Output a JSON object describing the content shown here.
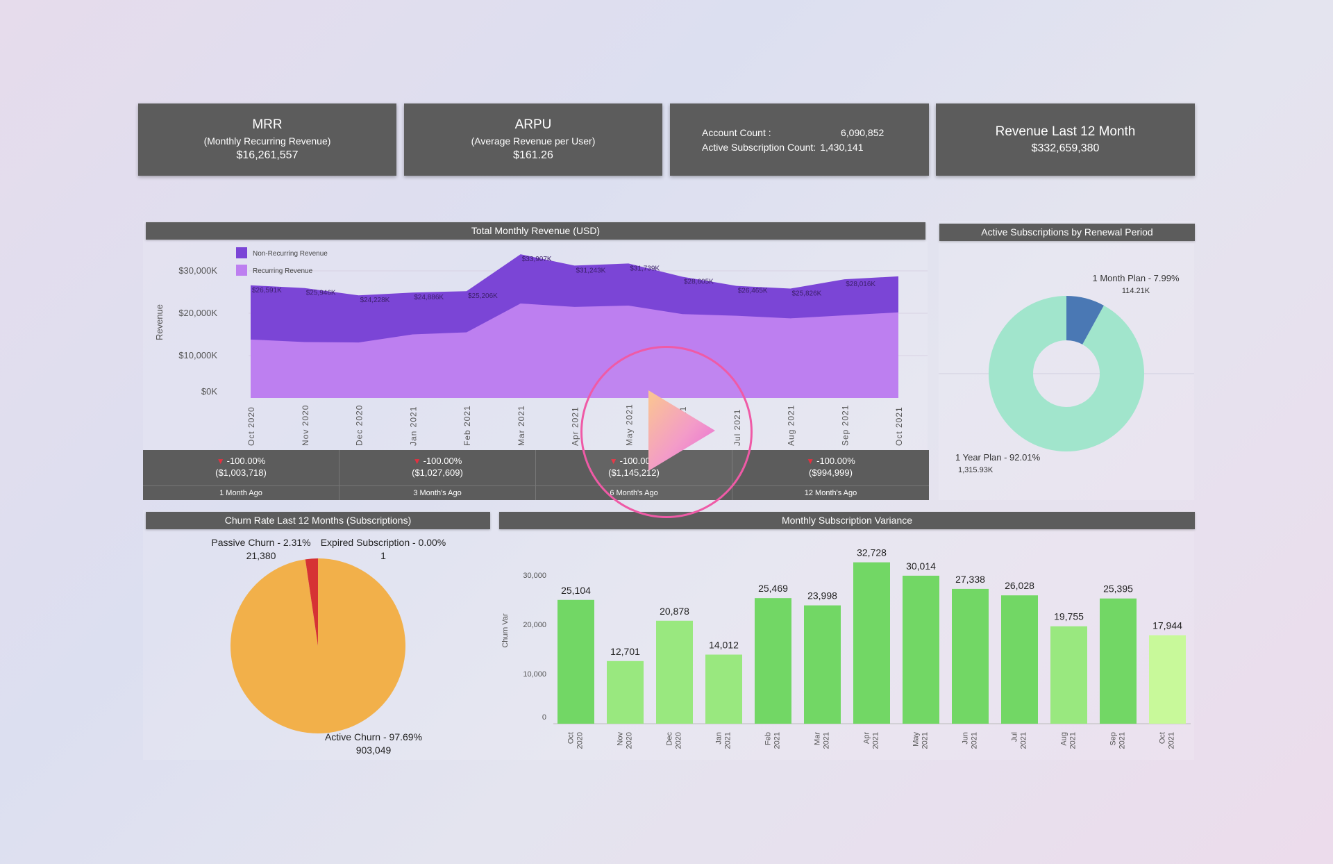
{
  "kpis": {
    "mrr": {
      "title": "MRR",
      "subtitle": "(Monthly Recurring Revenue)",
      "value": "$16,261,557"
    },
    "arpu": {
      "title": "ARPU",
      "subtitle": "(Average Revenue per User)",
      "value": "$161.26"
    },
    "accounts": {
      "account_label": "Account Count :",
      "account_value": "6,090,852",
      "active_label": "Active Subscription Count:",
      "active_value": "1,430,141"
    },
    "revenue12": {
      "title": "Revenue Last 12 Month",
      "value": "$332,659,380"
    }
  },
  "revenue_chart": {
    "title": "Total Monthly Revenue (USD)",
    "legend": {
      "non_recurring": "Non-Recurring Revenue",
      "recurring": "Recurring Revenue"
    },
    "y_label": "Revenue",
    "y_ticks": [
      "$30,000K",
      "$20,000K",
      "$10,000K",
      "$0K"
    ],
    "months": [
      "Oct 2020",
      "Nov 2020",
      "Dec 2020",
      "Jan 2021",
      "Feb 2021",
      "Mar 2021",
      "Apr 2021",
      "May 2021",
      "Jun 2021",
      "Jul 2021",
      "Aug 2021",
      "Sep 2021",
      "Oct 2021"
    ],
    "total_labels": [
      "$26,591K",
      "$25,946K",
      "$24,228K",
      "$24,886K",
      "$25,206K",
      "$33,907K",
      "$31,243K",
      "$31,739K",
      "$28,605K",
      "$26,465K",
      "$25,826K",
      "$28,016K",
      ""
    ]
  },
  "comparison_tiles": [
    {
      "pct": "-100.00%",
      "amount": "($1,003,718)",
      "label": "1 Month Ago"
    },
    {
      "pct": "-100.00%",
      "amount": "($1,027,609)",
      "label": "3 Month's Ago"
    },
    {
      "pct": "-100.00%",
      "amount": "($1,145,212)",
      "label": "6 Month's Ago"
    },
    {
      "pct": "-100.00%",
      "amount": "($994,999)",
      "label": "12 Month's Ago"
    }
  ],
  "renewal_chart": {
    "title": "Active Subscriptions by Renewal Period",
    "slice1_label": "1 Month Plan - 7.99%",
    "slice1_value": "114.21K",
    "slice2_label": "1 Year Plan - 92.01%",
    "slice2_value": "1,315.93K"
  },
  "churn_chart": {
    "title": "Churn Rate Last 12 Months (Subscriptions)",
    "passive_label": "Passive Churn - 2.31%",
    "passive_value": "21,380",
    "expired_label": "Expired Subscription - 0.00%",
    "expired_value": "1",
    "active_label": "Active Churn - 97.69%",
    "active_value": "903,049"
  },
  "variance_chart": {
    "title": "Monthly Subscription Variance",
    "y_label": "Churn Var",
    "y_ticks": [
      "30,000",
      "20,000",
      "10,000",
      "0"
    ]
  },
  "colors": {
    "header": "#5c5c5c",
    "non_recurring": "#7b45d6",
    "recurring": "#bd7ff0",
    "renewal_month": "#4a78b4",
    "renewal_year": "#a1e5cc",
    "churn_active": "#f2b04a",
    "churn_passive": "#d63234",
    "bar_dark": "#72d765",
    "bar_light": "#99e87f",
    "bar_lightest": "#c8f99a"
  },
  "play_icon": "play-icon",
  "chart_data": [
    {
      "type": "area",
      "title": "Total Monthly Revenue (USD)",
      "ylabel": "Revenue",
      "ylim": [
        0,
        35000
      ],
      "categories": [
        "Oct 2020",
        "Nov 2020",
        "Dec 2020",
        "Jan 2021",
        "Feb 2021",
        "Mar 2021",
        "Apr 2021",
        "May 2021",
        "Jun 2021",
        "Jul 2021",
        "Aug 2021",
        "Sep 2021",
        "Oct 2021"
      ],
      "series": [
        {
          "name": "Recurring Revenue",
          "values": [
            13800,
            13200,
            13100,
            15000,
            15500,
            22300,
            21500,
            21800,
            19800,
            19400,
            18800,
            19500,
            20200
          ]
        },
        {
          "name": "Non-Recurring Revenue",
          "values": [
            12791,
            12746,
            11128,
            9886,
            9706,
            11607,
            9743,
            9939,
            8805,
            7065,
            7026,
            8516,
            8500
          ]
        }
      ],
      "total_labels": [
        "$26,591K",
        "$25,946K",
        "$24,228K",
        "$24,886K",
        "$25,206K",
        "$33,907K",
        "$31,243K",
        "$31,739K",
        "$28,605K",
        "$26,465K",
        "$25,826K",
        "$28,016K"
      ],
      "legend": "top-left"
    },
    {
      "type": "pie",
      "title": "Active Subscriptions by Renewal Period",
      "slices": [
        {
          "label": "1 Month Plan",
          "value": 7.99
        },
        {
          "label": "1 Year Plan",
          "value": 92.01
        }
      ]
    },
    {
      "type": "pie",
      "title": "Churn Rate Last 12 Months (Subscriptions)",
      "slices": [
        {
          "label": "Passive Churn",
          "value": 2.31
        },
        {
          "label": "Expired Subscription",
          "value": 0.0
        },
        {
          "label": "Active Churn",
          "value": 97.69
        }
      ]
    },
    {
      "type": "bar",
      "title": "Monthly Subscription Variance",
      "ylabel": "Churn Var",
      "ylim": [
        0,
        35000
      ],
      "categories": [
        "Oct 2020",
        "Nov 2020",
        "Dec 2020",
        "Jan 2021",
        "Feb 2021",
        "Mar 2021",
        "Apr 2021",
        "May 2021",
        "Jun 2021",
        "Jul 2021",
        "Aug 2021",
        "Sep 2021",
        "Oct 2021"
      ],
      "values": [
        25104,
        12701,
        20878,
        14012,
        25469,
        23998,
        32728,
        30014,
        27338,
        26028,
        19755,
        25395,
        17944
      ],
      "value_labels": [
        "25,104",
        "12,701",
        "20,878",
        "14,012",
        "25,469",
        "23,998",
        "32,728",
        "30,014",
        "27,338",
        "26,028",
        "19,755",
        "25,395",
        "17,944"
      ],
      "tick_labels": [
        [
          "Oct",
          "2020"
        ],
        [
          "Nov",
          "2020"
        ],
        [
          "Dec",
          "2020"
        ],
        [
          "Jan",
          "2021"
        ],
        [
          "Feb",
          "2021"
        ],
        [
          "Mar",
          "2021"
        ],
        [
          "Apr",
          "2021"
        ],
        [
          "May",
          "2021"
        ],
        [
          "Jun",
          "2021"
        ],
        [
          "Jul",
          "2021"
        ],
        [
          "Aug",
          "2021"
        ],
        [
          "Sep",
          "2021"
        ],
        [
          "Oct",
          "2021"
        ]
      ]
    }
  ]
}
